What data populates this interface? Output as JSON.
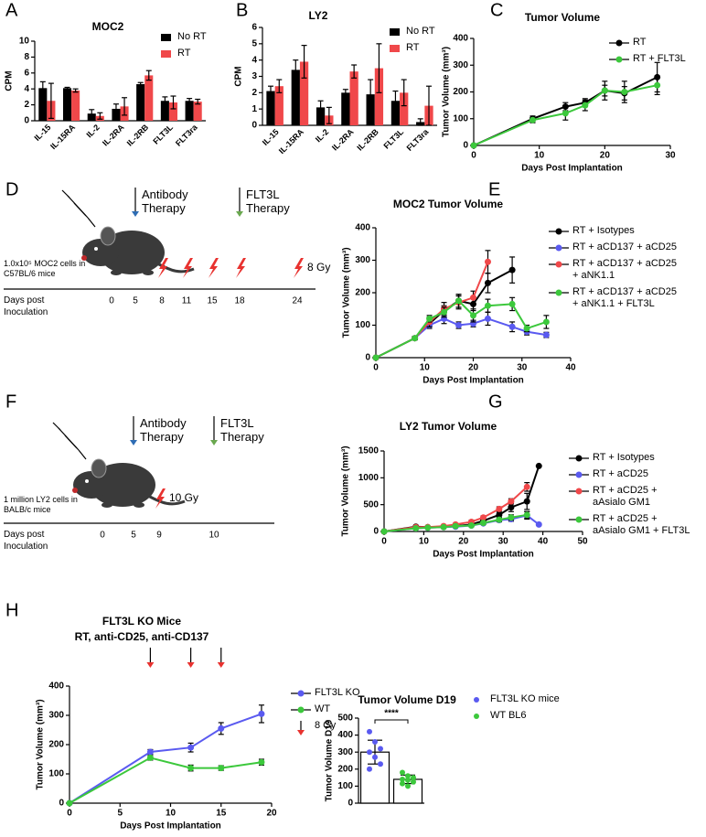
{
  "chart_data": [
    {
      "panel": "A",
      "type": "bar",
      "title": "MOC2",
      "y_label": "CPM",
      "categories": [
        "IL-15",
        "IL-15RA",
        "IL-2",
        "IL-2RA",
        "IL-2RB",
        "FLT3L",
        "FLT3ra"
      ],
      "ylim": [
        0,
        10
      ],
      "yticks": [
        0,
        2,
        4,
        6,
        8,
        10
      ],
      "series": [
        {
          "name": "No RT",
          "color": "#000000",
          "values": [
            4.1,
            4.1,
            0.9,
            1.5,
            4.6,
            2.5,
            2.5
          ],
          "errors": [
            0.8,
            0.1,
            0.5,
            0.6,
            0.2,
            0.5,
            0.3
          ]
        },
        {
          "name": "RT",
          "color": "#f0484a",
          "values": [
            2.5,
            3.8,
            0.6,
            1.8,
            5.7,
            2.3,
            2.4
          ],
          "errors": [
            2.2,
            0.2,
            0.4,
            1.1,
            0.6,
            0.8,
            0.3
          ]
        }
      ]
    },
    {
      "panel": "B",
      "type": "bar",
      "title": "LY2",
      "y_label": "CPM",
      "categories": [
        "IL-15",
        "IL-15RA",
        "IL-2",
        "IL-2RA",
        "IL-2RB",
        "FLT3L",
        "FLT3ra"
      ],
      "ylim": [
        0,
        6
      ],
      "yticks": [
        0,
        1,
        2,
        3,
        4,
        5,
        6
      ],
      "series": [
        {
          "name": "No RT",
          "color": "#000000",
          "values": [
            2.1,
            3.4,
            1.1,
            2.0,
            1.9,
            1.5,
            0.2
          ],
          "errors": [
            0.3,
            0.6,
            0.4,
            0.2,
            0.9,
            0.6,
            0.2
          ]
        },
        {
          "name": "RT",
          "color": "#f0484a",
          "values": [
            2.4,
            3.9,
            0.6,
            3.3,
            3.5,
            2.0,
            1.2
          ],
          "errors": [
            0.4,
            1.0,
            0.5,
            0.4,
            1.5,
            0.8,
            1.2
          ]
        }
      ]
    },
    {
      "panel": "C",
      "type": "line",
      "title": "Tumor Volume",
      "x_label": "Days Post Implantation",
      "y_label": "Tumor Volume (mm³)",
      "xlim": [
        0,
        30
      ],
      "xticks": [
        0,
        10,
        20,
        30
      ],
      "ylim": [
        0,
        400
      ],
      "yticks": [
        0,
        100,
        200,
        300,
        400
      ],
      "series": [
        {
          "name": "RT",
          "color": "#000000",
          "x": [
            0,
            9,
            14,
            17,
            20,
            23,
            28
          ],
          "values": [
            0,
            100,
            145,
            160,
            205,
            195,
            255
          ],
          "errors": [
            0,
            10,
            15,
            15,
            20,
            25,
            55
          ]
        },
        {
          "name": "RT + FLT3L",
          "color": "#3cc83c",
          "x": [
            0,
            9,
            14,
            17,
            20,
            23,
            28
          ],
          "values": [
            0,
            95,
            120,
            150,
            205,
            200,
            225
          ],
          "errors": [
            0,
            10,
            25,
            20,
            35,
            40,
            35
          ]
        }
      ]
    },
    {
      "panel": "E",
      "type": "line",
      "title": "MOC2 Tumor Volume",
      "x_label": "Days Post Implantation",
      "y_label": "Tumor Volume (mm³)",
      "xlim": [
        0,
        40
      ],
      "xticks": [
        0,
        10,
        20,
        30,
        40
      ],
      "ylim": [
        0,
        400
      ],
      "yticks": [
        0,
        100,
        200,
        300,
        400
      ],
      "series": [
        {
          "name": "RT + Isotypes",
          "color": "#000000",
          "x": [
            0,
            8,
            11,
            14,
            17,
            20,
            23,
            28
          ],
          "values": [
            0,
            60,
            105,
            145,
            175,
            165,
            230,
            270
          ],
          "errors": [
            0,
            5,
            10,
            15,
            20,
            20,
            30,
            40
          ]
        },
        {
          "name": "RT + aCD137 + aCD25",
          "color": "#5a5af0",
          "x": [
            0,
            8,
            11,
            14,
            17,
            20,
            23,
            28,
            31,
            35
          ],
          "values": [
            0,
            60,
            100,
            120,
            100,
            105,
            120,
            95,
            80,
            70
          ],
          "errors": [
            0,
            5,
            10,
            15,
            10,
            10,
            20,
            15,
            10,
            8
          ]
        },
        {
          "name": "RT + aCD137 + aCD25 + aNK1.1",
          "color": "#f0484a",
          "x": [
            0,
            8,
            11,
            14,
            17,
            20,
            23
          ],
          "values": [
            0,
            60,
            110,
            150,
            170,
            185,
            295
          ],
          "errors": [
            0,
            5,
            15,
            20,
            20,
            20,
            35
          ]
        },
        {
          "name": "RT + aCD137 + aCD25 + aNK1.1 + FLT3L",
          "color": "#3cc83c",
          "x": [
            0,
            8,
            11,
            14,
            17,
            20,
            23,
            28,
            31,
            35
          ],
          "values": [
            0,
            60,
            120,
            140,
            175,
            130,
            160,
            165,
            90,
            110
          ],
          "errors": [
            0,
            5,
            10,
            15,
            20,
            20,
            20,
            20,
            10,
            20
          ]
        }
      ]
    },
    {
      "panel": "G",
      "type": "line",
      "title": "LY2 Tumor Volume",
      "x_label": "Days Post Implantation",
      "y_label": "Tumor Volume (mm³)",
      "xlim": [
        0,
        50
      ],
      "xticks": [
        0,
        10,
        20,
        30,
        40,
        50
      ],
      "ylim": [
        0,
        1500
      ],
      "yticks": [
        0,
        500,
        1000,
        1500
      ],
      "series": [
        {
          "name": "RT + Isotypes",
          "color": "#000000",
          "x": [
            0,
            8,
            11,
            15,
            18,
            22,
            25,
            29,
            32,
            36,
            39
          ],
          "values": [
            0,
            90,
            80,
            90,
            100,
            130,
            200,
            310,
            450,
            560,
            1220
          ],
          "errors": [
            0,
            10,
            10,
            10,
            15,
            20,
            30,
            50,
            80,
            150,
            0
          ]
        },
        {
          "name": "RT + aCD25",
          "color": "#5a5af0",
          "x": [
            0,
            8,
            11,
            15,
            18,
            22,
            25,
            29,
            32,
            36,
            39
          ],
          "values": [
            0,
            60,
            70,
            80,
            90,
            110,
            150,
            210,
            230,
            300,
            130
          ],
          "errors": [
            0,
            5,
            10,
            10,
            10,
            15,
            20,
            30,
            40,
            70,
            20
          ]
        },
        {
          "name": "RT + aCD25 + aAsialo GM1",
          "color": "#f0484a",
          "x": [
            0,
            8,
            11,
            15,
            18,
            22,
            25,
            29,
            32,
            36
          ],
          "values": [
            0,
            80,
            80,
            100,
            130,
            180,
            260,
            420,
            560,
            830
          ],
          "errors": [
            0,
            10,
            10,
            15,
            20,
            30,
            30,
            40,
            50,
            80
          ]
        },
        {
          "name": "RT + aCD25 + aAsialo GM1 + FLT3L",
          "color": "#3cc83c",
          "x": [
            0,
            8,
            11,
            15,
            18,
            22,
            25,
            29,
            32,
            36
          ],
          "values": [
            0,
            60,
            70,
            80,
            100,
            110,
            160,
            220,
            260,
            310
          ],
          "errors": [
            0,
            5,
            10,
            10,
            15,
            20,
            30,
            40,
            50,
            60
          ]
        }
      ]
    },
    {
      "panel": "H",
      "type": "line",
      "title": "FLT3L KO  Mice",
      "subtitle": "RT, anti-CD25, anti-CD137",
      "x_label": "Days Post Implantation",
      "y_label": "Tumor Volume (mm³)",
      "xlim": [
        0,
        20
      ],
      "xticks": [
        0,
        5,
        10,
        15,
        20
      ],
      "ylim": [
        0,
        400
      ],
      "yticks": [
        0,
        100,
        200,
        300,
        400
      ],
      "series": [
        {
          "name": "FLT3L  KO",
          "color": "#5a5af0",
          "x": [
            0,
            8,
            12,
            15,
            19
          ],
          "values": [
            0,
            175,
            190,
            255,
            305
          ],
          "errors": [
            0,
            8,
            15,
            20,
            30
          ]
        },
        {
          "name": "WT",
          "color": "#3cc83c",
          "x": [
            0,
            8,
            12,
            15,
            19
          ],
          "values": [
            0,
            155,
            120,
            120,
            140
          ],
          "errors": [
            0,
            8,
            10,
            8,
            10
          ]
        }
      ],
      "radiation": {
        "label": "8 Gy",
        "color": "#e8322f",
        "x": [
          8,
          12,
          15
        ]
      }
    },
    {
      "type": "bar",
      "title": "Tumor  Volume D19",
      "y_label": "Tumor Volume D19",
      "ylim": [
        0,
        500
      ],
      "yticks": [
        0,
        100,
        200,
        300,
        400,
        500
      ],
      "significance": "****",
      "series": [
        {
          "name": "FLT3L KO mice",
          "color": "#5a5af0",
          "values": [
            300
          ],
          "errors": [
            70
          ],
          "points": [
            420,
            360,
            320,
            300,
            270,
            230,
            200
          ]
        },
        {
          "name": "WT BL6",
          "color": "#3cc83c",
          "values": [
            140
          ],
          "errors": [
            25
          ],
          "points": [
            180,
            160,
            150,
            140,
            135,
            125,
            115,
            100
          ]
        }
      ]
    }
  ],
  "schematics": [
    {
      "panel": "D",
      "cells": "1.0x10⁵ MOC2 cells in C57BL/6 mice",
      "timeline_label": "Days post Inoculation",
      "days": [
        0,
        5,
        8,
        11,
        15,
        18,
        24
      ],
      "therapies": [
        {
          "label": "Antibody Therapy",
          "color": "#2e6db4",
          "day": 5
        },
        {
          "label": "FLT3L Therapy",
          "color": "#6aa84f",
          "day": 18
        }
      ],
      "radiation": {
        "label": "8 Gy",
        "color": "#e8322f",
        "days": [
          8,
          11,
          15,
          18,
          24
        ]
      }
    },
    {
      "panel": "F",
      "cells": "1 million LY2 cells in BALB/c mice",
      "timeline_label": "Days post Inoculation",
      "days": [
        0,
        5,
        9,
        10
      ],
      "therapies": [
        {
          "label": "Antibody Therapy",
          "color": "#2e6db4",
          "day": 5
        },
        {
          "label": "FLT3L Therapy",
          "color": "#6aa84f",
          "day": 10
        }
      ],
      "radiation": {
        "label": "10 Gy",
        "color": "#e8322f",
        "days": [
          9
        ]
      }
    }
  ]
}
